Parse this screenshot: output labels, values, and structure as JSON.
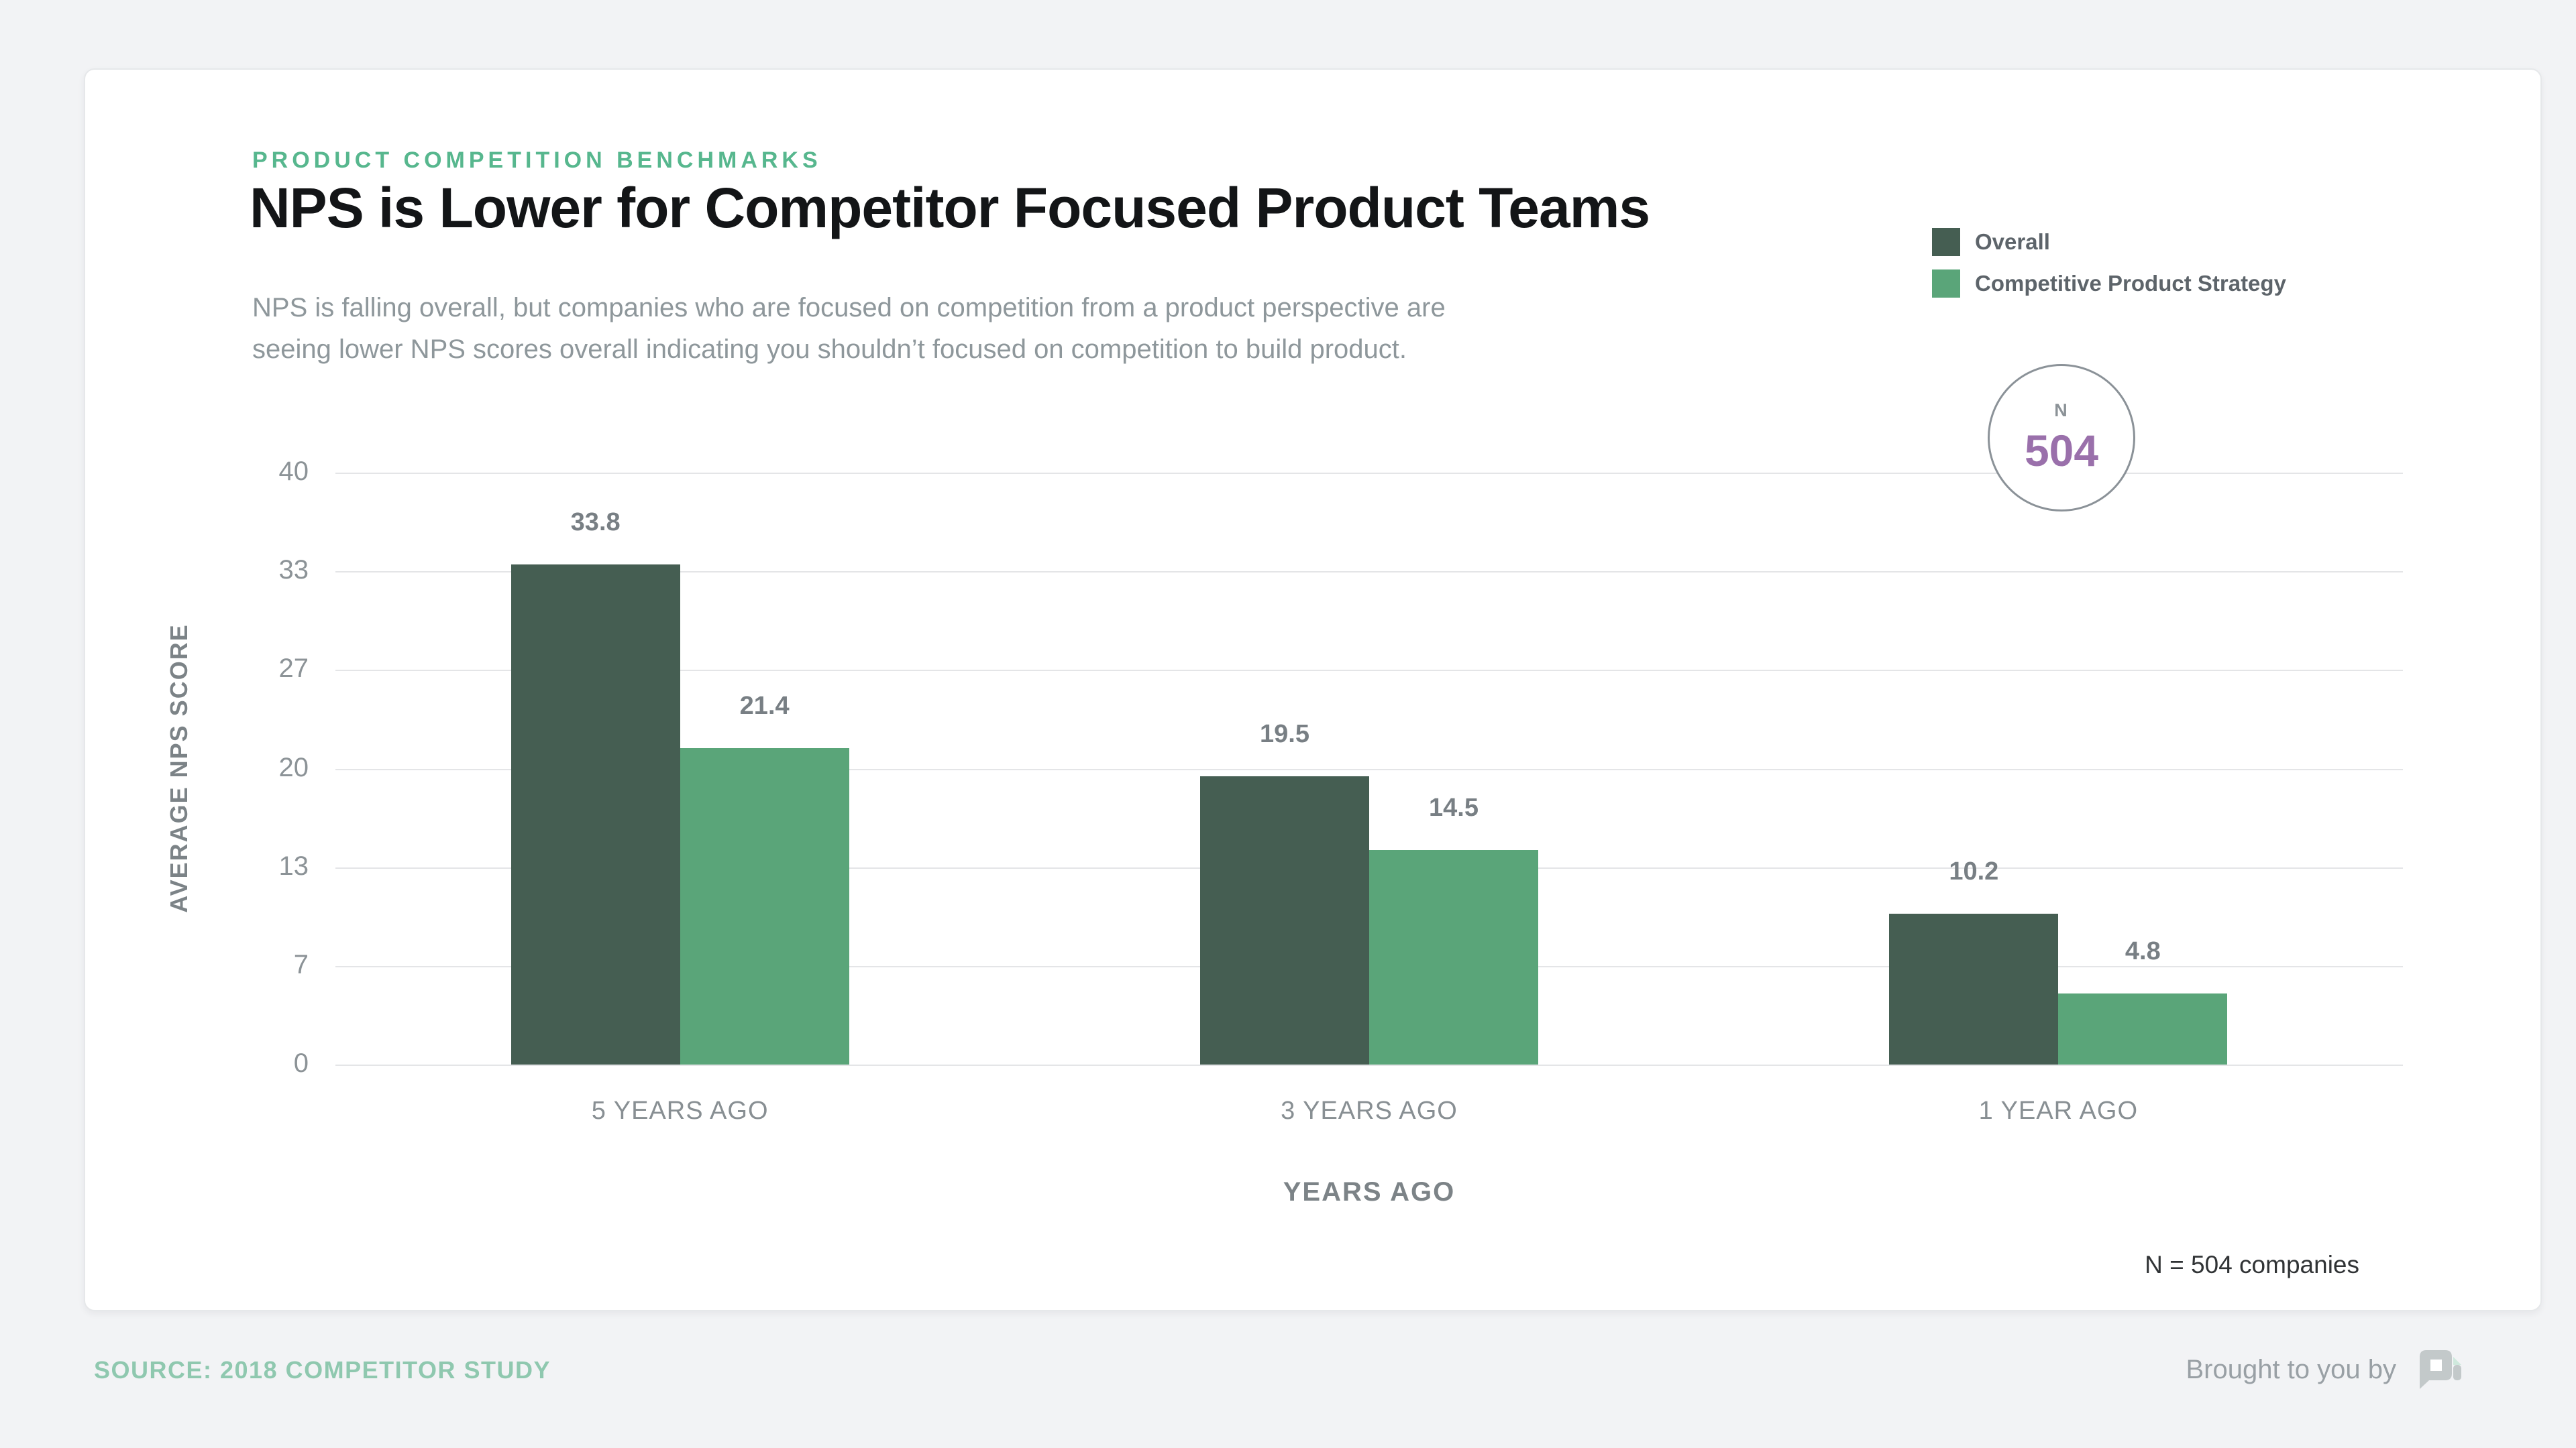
{
  "header": {
    "eyebrow": "PRODUCT COMPETITION BENCHMARKS",
    "title": "NPS is Lower for Competitor Focused Product Teams",
    "subtitle": "NPS is falling overall, but companies who are focused on competition from a product perspective are\nseeing lower NPS scores overall indicating you shouldn’t focused on competition to build product."
  },
  "legend": {
    "items": [
      {
        "label": "Overall",
        "color": "#455e52"
      },
      {
        "label": "Competitive Product Strategy",
        "color": "#5aa579"
      }
    ]
  },
  "sample_badge": {
    "label": "N",
    "value": "504"
  },
  "chart_data": {
    "type": "bar",
    "categories": [
      "5 YEARS AGO",
      "3 YEARS AGO",
      "1 YEAR AGO"
    ],
    "series": [
      {
        "name": "Overall",
        "color": "#455e52",
        "values": [
          33.8,
          19.5,
          10.2
        ]
      },
      {
        "name": "Competitive Product Strategy",
        "color": "#5aa579",
        "values": [
          21.4,
          14.5,
          4.8
        ]
      }
    ],
    "title": "NPS is Lower for Competitor Focused Product Teams",
    "xlabel": "YEARS AGO",
    "ylabel": "AVERAGE NPS SCORE",
    "yticks": [
      40,
      33,
      27,
      20,
      13,
      7,
      0
    ],
    "ylim": [
      0,
      40
    ],
    "grid": true,
    "legend_position": "top-right"
  },
  "footnote": "N = 504 companies",
  "footer": {
    "source": "SOURCE: 2018 COMPETITOR STUDY",
    "brought_by": "Brought to you by",
    "logo": "productplan-logo"
  },
  "colors": {
    "accent_green": "#57b78e",
    "overall": "#455e52",
    "competitive": "#5aa579",
    "purple": "#9a70ab",
    "gridline": "#e4e5e7",
    "page_background": "#f2f3f5"
  }
}
